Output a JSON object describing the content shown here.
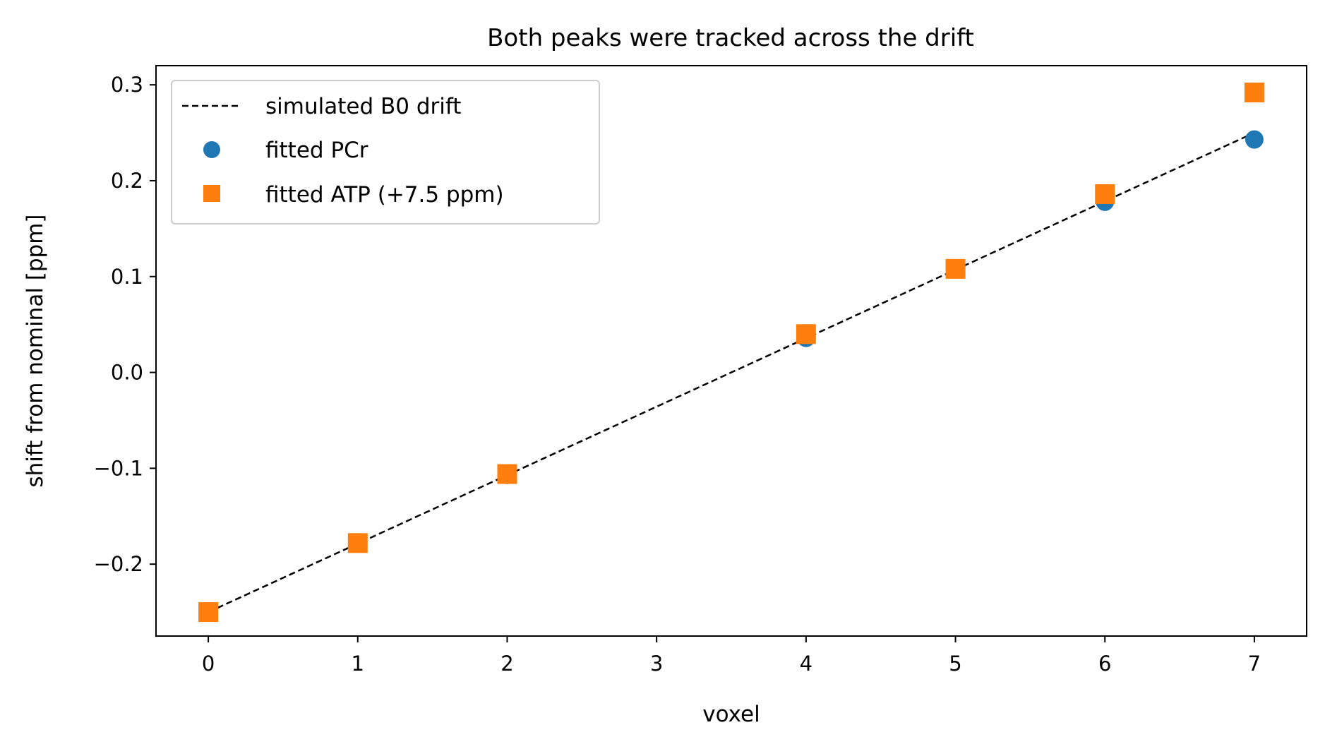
{
  "chart_data": {
    "type": "scatter",
    "title": "Both peaks were tracked across the drift",
    "xlabel": "voxel",
    "ylabel": "shift from nominal [ppm]",
    "xlim": [
      -0.35,
      7.35
    ],
    "ylim": [
      -0.275,
      0.32
    ],
    "x_ticks": [
      0,
      1,
      2,
      3,
      4,
      5,
      6,
      7
    ],
    "x_tick_labels": [
      "0",
      "1",
      "2",
      "3",
      "4",
      "5",
      "6",
      "7"
    ],
    "y_ticks": [
      -0.2,
      -0.1,
      0.0,
      0.1,
      0.2,
      0.3
    ],
    "y_tick_labels": [
      "−0.2",
      "−0.1",
      "0.0",
      "0.1",
      "0.2",
      "0.3"
    ],
    "grid": false,
    "legend_position": "upper-left",
    "series": [
      {
        "name": "simulated B0 drift",
        "kind": "line",
        "style": "dashed",
        "color": "#000000",
        "x": [
          0,
          7
        ],
        "y": [
          -0.25,
          0.25
        ]
      },
      {
        "name": "fitted PCr",
        "kind": "scatter",
        "marker": "circle",
        "color": "#1f77b4",
        "x": [
          0,
          1,
          2,
          4,
          5,
          6,
          7
        ],
        "y": [
          -0.25,
          -0.178,
          -0.107,
          0.036,
          0.108,
          0.178,
          0.243
        ]
      },
      {
        "name": "fitted ATP (+7.5 ppm)",
        "kind": "scatter",
        "marker": "square",
        "color": "#ff7f0e",
        "x": [
          0,
          1,
          2,
          4,
          5,
          6,
          7
        ],
        "y": [
          -0.25,
          -0.178,
          -0.106,
          0.04,
          0.108,
          0.186,
          0.292
        ]
      }
    ]
  }
}
